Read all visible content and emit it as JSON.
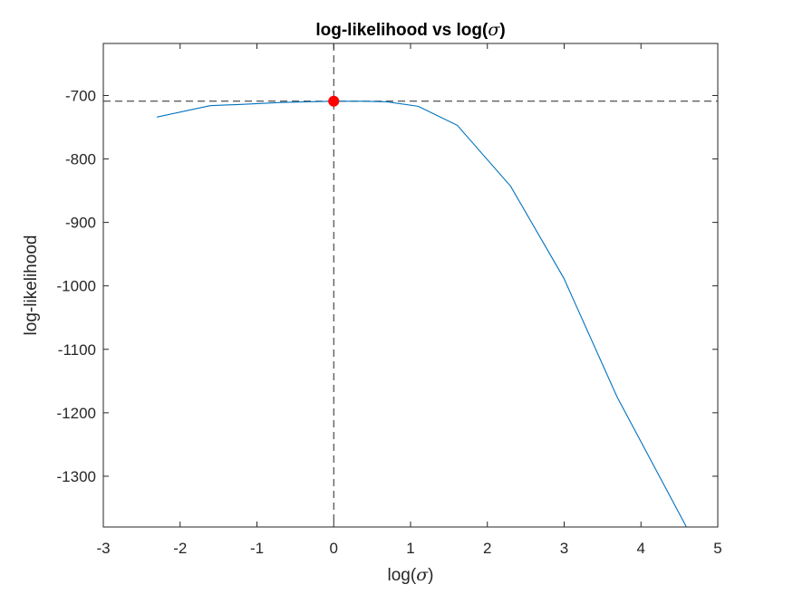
{
  "chart_data": {
    "type": "line",
    "title_prefix": "log-likelihood vs log(",
    "title_symbol": "σ",
    "title_suffix": ")",
    "xlabel_prefix": "log(",
    "xlabel_symbol": "σ",
    "xlabel_suffix": ")",
    "ylabel": "log-likelihood",
    "xlim": [
      -3,
      5
    ],
    "ylim": [
      -1380,
      -618
    ],
    "xticks": [
      -3,
      -2,
      -1,
      0,
      1,
      2,
      3,
      4,
      5
    ],
    "yticks": [
      -1300,
      -1200,
      -1100,
      -1000,
      -900,
      -800,
      -700
    ],
    "grid": false,
    "series": [
      {
        "color": "#0072BD",
        "x": [
          -2.303,
          -1.609,
          -1.204,
          -0.693,
          -0.357,
          0,
          0.405,
          0.693,
          1.099,
          1.609,
          2.303,
          2.996,
          3.689,
          4.605
        ],
        "y": [
          -734,
          -716,
          -714,
          -711,
          -710,
          -709,
          -709,
          -710,
          -717,
          -747,
          -843,
          -988,
          -1175,
          -1383
        ]
      }
    ],
    "optimum": {
      "x": 0,
      "y": -709,
      "color": "#FF0000"
    },
    "reference_lines": {
      "vertical_x": 0,
      "horizontal_y": -709,
      "color": "#262626"
    }
  }
}
